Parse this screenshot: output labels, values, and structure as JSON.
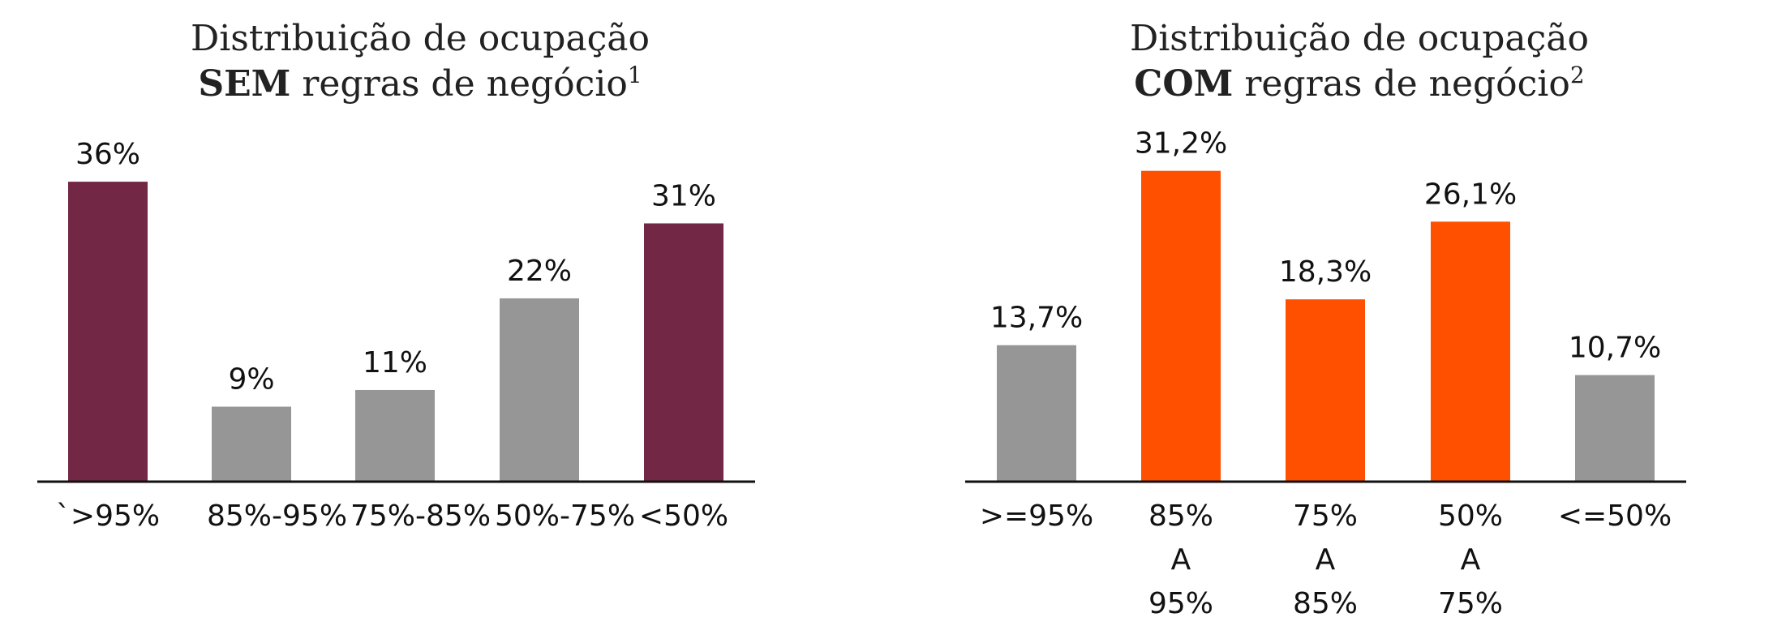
{
  "chart_data": [
    {
      "type": "bar",
      "title": "Distribuição de ocupação",
      "subtitle_bold": "SEM",
      "subtitle": "regras de negócio",
      "footnote_mark": "1",
      "categories": [
        "`>95%",
        "85%-95%",
        "75%-85%",
        "50%-75%",
        "<50%"
      ],
      "values": [
        36,
        9,
        11,
        22,
        31
      ],
      "value_labels": [
        "36%",
        "9%",
        "11%",
        "22%",
        "31%"
      ],
      "colors": [
        "#722845",
        "#969696",
        "#969696",
        "#969696",
        "#722845"
      ],
      "ylim": [
        0,
        40
      ]
    },
    {
      "type": "bar",
      "title": "Distribuição de ocupação",
      "subtitle_bold": "COM",
      "subtitle": "regras de negócio",
      "footnote_mark": "2",
      "categories": [
        ">=95%",
        "85% A 95%",
        "75% A 85%",
        "50% A 75%",
        "<=50%"
      ],
      "values": [
        13.7,
        31.2,
        18.3,
        26.1,
        10.7
      ],
      "value_labels": [
        "13,7%",
        "31,2%",
        "18,3%",
        "26,1%",
        "10,7%"
      ],
      "colors": [
        "#969696",
        "#ff5000",
        "#ff5000",
        "#ff5000",
        "#969696"
      ],
      "ylim": [
        0,
        35
      ]
    }
  ]
}
